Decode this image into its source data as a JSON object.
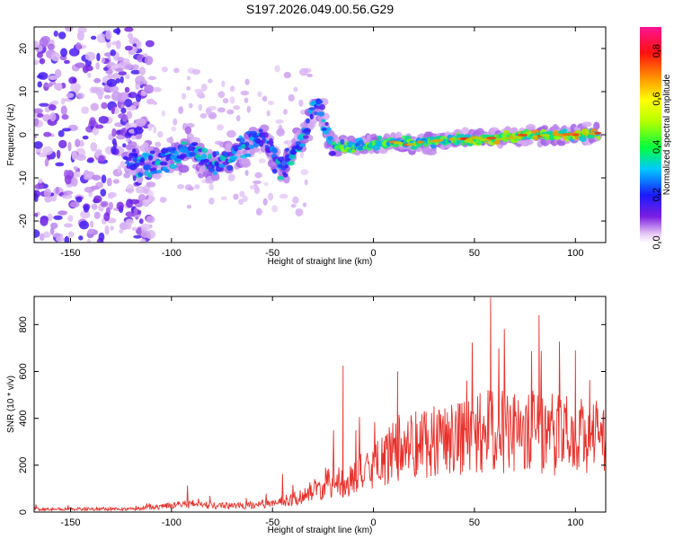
{
  "page_title": "S197.2026.049.00.56.G29",
  "chart_data": [
    {
      "type": "heatmap",
      "title": "S197.2026.049.00.56.G29",
      "xlabel": "Height of straight line (km)",
      "ylabel": "Frequency (Hz)",
      "xlim": [
        -168,
        115
      ],
      "ylim": [
        -25,
        25
      ],
      "x_ticks": [
        "-150",
        "-100",
        "-50",
        "0",
        "50",
        "100"
      ],
      "y_ticks": [
        "-20",
        "-10",
        "0",
        "10",
        "20"
      ],
      "colorbar": {
        "label": "Normalized spectral amplitude",
        "range": [
          0,
          0.9
        ],
        "ticks": [
          "0.0",
          "0.2",
          "0.4",
          "0.6",
          "0.8"
        ]
      },
      "ridge": [
        {
          "x": -120,
          "f": -6
        },
        {
          "x": -110,
          "f": -7
        },
        {
          "x": -100,
          "f": -5
        },
        {
          "x": -90,
          "f": -3
        },
        {
          "x": -80,
          "f": -8
        },
        {
          "x": -65,
          "f": -3
        },
        {
          "x": -55,
          "f": 0
        },
        {
          "x": -45,
          "f": -8
        },
        {
          "x": -35,
          "f": -1
        },
        {
          "x": -28,
          "f": 8
        },
        {
          "x": -20,
          "f": -3
        },
        {
          "x": 0,
          "f": -2
        },
        {
          "x": 20,
          "f": -2
        },
        {
          "x": 40,
          "f": -1
        },
        {
          "x": 60,
          "f": -1
        },
        {
          "x": 80,
          "f": 0
        },
        {
          "x": 100,
          "f": 0
        },
        {
          "x": 112,
          "f": 0
        }
      ]
    },
    {
      "type": "line",
      "xlabel": "Height of straight line (km)",
      "ylabel": "SNR (10 * v/v)",
      "xlim": [
        -168,
        115
      ],
      "ylim": [
        0,
        920
      ],
      "x_ticks": [
        "-150",
        "-100",
        "-50",
        "0",
        "50",
        "100"
      ],
      "y_ticks": [
        "0",
        "200",
        "400",
        "600",
        "800"
      ],
      "series": [
        {
          "name": "SNR",
          "color": "#e8302a",
          "envelope": [
            {
              "x": -168,
              "base": 15,
              "peak": 35
            },
            {
              "x": -120,
              "base": 15,
              "peak": 35
            },
            {
              "x": -105,
              "base": 25,
              "peak": 80
            },
            {
              "x": -100,
              "base": 40,
              "peak": 125
            },
            {
              "x": -70,
              "base": 30,
              "peak": 100
            },
            {
              "x": -50,
              "base": 40,
              "peak": 130
            },
            {
              "x": -35,
              "base": 80,
              "peak": 250
            },
            {
              "x": -22,
              "base": 150,
              "peak": 360
            },
            {
              "x": -15,
              "base": 150,
              "peak": 620
            },
            {
              "x": 0,
              "base": 220,
              "peak": 420
            },
            {
              "x": 12,
              "base": 320,
              "peak": 600
            },
            {
              "x": 30,
              "base": 370,
              "peak": 690
            },
            {
              "x": 58,
              "base": 400,
              "peak": 915
            },
            {
              "x": 80,
              "base": 400,
              "peak": 840
            },
            {
              "x": 100,
              "base": 380,
              "peak": 690
            },
            {
              "x": 115,
              "base": 390,
              "peak": 600
            }
          ]
        }
      ]
    }
  ]
}
